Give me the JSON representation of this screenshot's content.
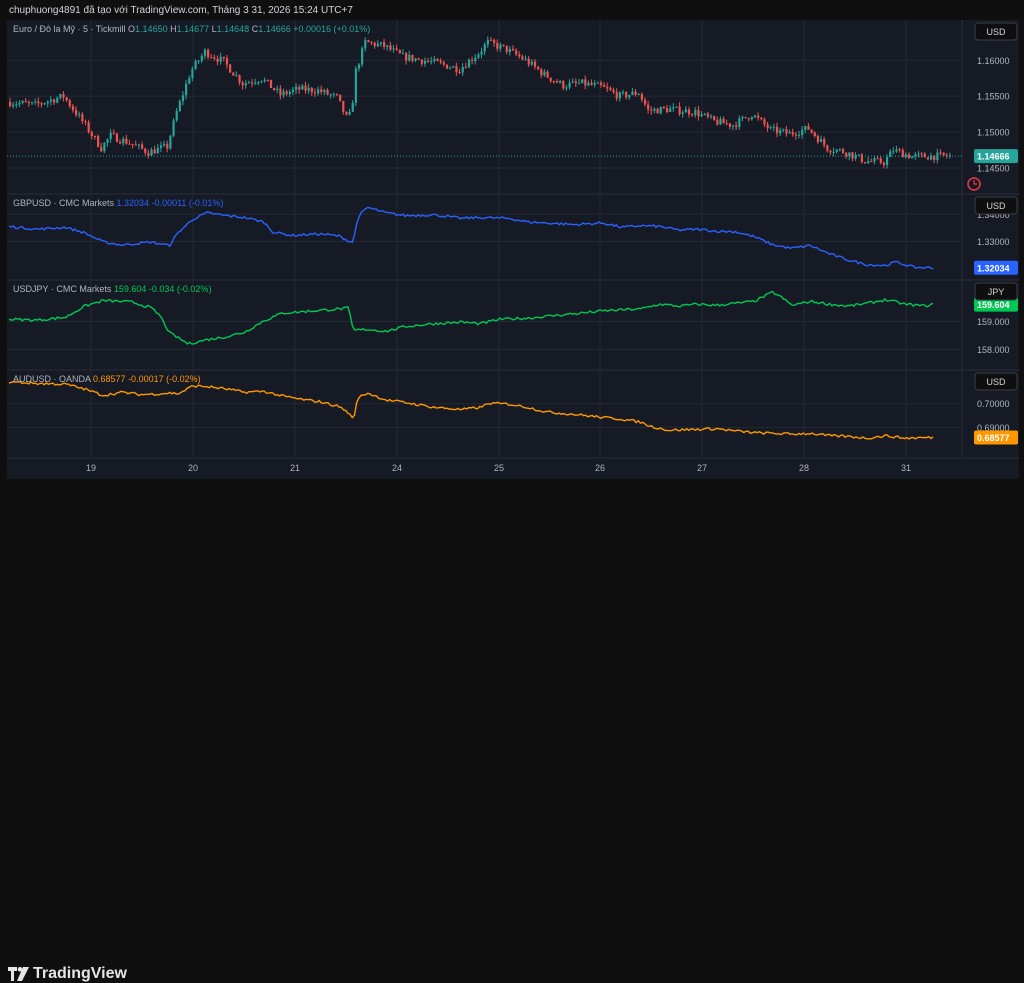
{
  "header": {
    "caption": "chuphuong4891 đã tạo với TradingView.com, Tháng 3 31, 2026 15:24 UTC+7"
  },
  "brand": {
    "name": "TradingView"
  },
  "colors": {
    "bg": "#161a25",
    "grid": "#242833",
    "text": "#b2b5be",
    "up": "#26a69a",
    "down": "#ef5350",
    "gbp": "#2962ff",
    "jpy": "#00c853",
    "aud": "#ff9800"
  },
  "x_axis": {
    "ticks": [
      "19",
      "20",
      "21",
      "24",
      "25",
      "26",
      "27",
      "28",
      "31"
    ]
  },
  "chart_data": [
    {
      "type": "candlestick",
      "symbol": "Euro / Đô la Mỹ · 5 · Tickmill",
      "ohlc": {
        "O_label": "O",
        "O": "1.14650",
        "H_label": "H",
        "H": "1.14677",
        "L_label": "L",
        "L": "1.14648",
        "C_label": "C",
        "C": "1.14666",
        "change": "+0.00016 (+0.01%)"
      },
      "currency": "USD",
      "last": "1.14666",
      "yticks": [
        "1.16000",
        "1.15500",
        "1.15000",
        "1.14500"
      ],
      "ylim": [
        1.1425,
        1.1645
      ],
      "path": [
        [
          0,
          1.1542
        ],
        [
          0.03,
          1.1538
        ],
        [
          0.06,
          1.155
        ],
        [
          0.08,
          1.1515
        ],
        [
          0.1,
          1.1478
        ],
        [
          0.11,
          1.1495
        ],
        [
          0.13,
          1.1485
        ],
        [
          0.15,
          1.1472
        ],
        [
          0.17,
          1.148
        ],
        [
          0.18,
          1.1528
        ],
        [
          0.195,
          1.1585
        ],
        [
          0.21,
          1.1612
        ],
        [
          0.23,
          1.1598
        ],
        [
          0.25,
          1.1568
        ],
        [
          0.27,
          1.1575
        ],
        [
          0.29,
          1.1552
        ],
        [
          0.31,
          1.156
        ],
        [
          0.33,
          1.1558
        ],
        [
          0.35,
          1.1548
        ],
        [
          0.36,
          1.152
        ],
        [
          0.365,
          1.1525
        ],
        [
          0.37,
          1.1585
        ],
        [
          0.38,
          1.1625
        ],
        [
          0.4,
          1.162
        ],
        [
          0.42,
          1.1605
        ],
        [
          0.45,
          1.1598
        ],
        [
          0.48,
          1.1588
        ],
        [
          0.5,
          1.161
        ],
        [
          0.51,
          1.1625
        ],
        [
          0.53,
          1.1615
        ],
        [
          0.55,
          1.16
        ],
        [
          0.57,
          1.158
        ],
        [
          0.59,
          1.1565
        ],
        [
          0.61,
          1.1568
        ],
        [
          0.63,
          1.1563
        ],
        [
          0.65,
          1.155
        ],
        [
          0.67,
          1.1555
        ],
        [
          0.68,
          1.153
        ],
        [
          0.7,
          1.1532
        ],
        [
          0.73,
          1.1528
        ],
        [
          0.75,
          1.1515
        ],
        [
          0.77,
          1.151
        ],
        [
          0.79,
          1.1525
        ],
        [
          0.81,
          1.1503
        ],
        [
          0.83,
          1.1498
        ],
        [
          0.85,
          1.1505
        ],
        [
          0.87,
          1.1478
        ],
        [
          0.89,
          1.1472
        ],
        [
          0.91,
          1.146
        ],
        [
          0.93,
          1.1458
        ],
        [
          0.94,
          1.1475
        ],
        [
          0.96,
          1.1466
        ],
        [
          0.98,
          1.14666
        ]
      ]
    },
    {
      "type": "line",
      "name": "GBPUSD · CMC Markets",
      "value": "1.32034",
      "change": "-0.00011 (-0.01%)",
      "currency": "USD",
      "yticks": [
        "1.34000",
        "1.33000"
      ],
      "ylim": [
        1.3188,
        1.3445
      ],
      "path": [
        [
          0,
          1.3355
        ],
        [
          0.03,
          1.3345
        ],
        [
          0.06,
          1.3352
        ],
        [
          0.08,
          1.3332
        ],
        [
          0.1,
          1.3298
        ],
        [
          0.12,
          1.3287
        ],
        [
          0.15,
          1.3298
        ],
        [
          0.17,
          1.3285
        ],
        [
          0.18,
          1.3335
        ],
        [
          0.195,
          1.3382
        ],
        [
          0.21,
          1.3405
        ],
        [
          0.23,
          1.3395
        ],
        [
          0.25,
          1.3388
        ],
        [
          0.27,
          1.3372
        ],
        [
          0.28,
          1.3335
        ],
        [
          0.3,
          1.3322
        ],
        [
          0.33,
          1.3328
        ],
        [
          0.35,
          1.332
        ],
        [
          0.36,
          1.3302
        ],
        [
          0.365,
          1.3298
        ],
        [
          0.37,
          1.339
        ],
        [
          0.38,
          1.3425
        ],
        [
          0.4,
          1.3405
        ],
        [
          0.42,
          1.3395
        ],
        [
          0.45,
          1.3398
        ],
        [
          0.48,
          1.3385
        ],
        [
          0.5,
          1.3388
        ],
        [
          0.53,
          1.3385
        ],
        [
          0.55,
          1.3372
        ],
        [
          0.58,
          1.3366
        ],
        [
          0.6,
          1.3362
        ],
        [
          0.63,
          1.3368
        ],
        [
          0.65,
          1.3352
        ],
        [
          0.67,
          1.3358
        ],
        [
          0.69,
          1.3355
        ],
        [
          0.71,
          1.3342
        ],
        [
          0.73,
          1.3345
        ],
        [
          0.75,
          1.3338
        ],
        [
          0.77,
          1.3336
        ],
        [
          0.79,
          1.3318
        ],
        [
          0.81,
          1.3288
        ],
        [
          0.83,
          1.3275
        ],
        [
          0.85,
          1.3285
        ],
        [
          0.87,
          1.3255
        ],
        [
          0.89,
          1.3232
        ],
        [
          0.91,
          1.3215
        ],
        [
          0.93,
          1.3212
        ],
        [
          0.94,
          1.3225
        ],
        [
          0.96,
          1.3205
        ],
        [
          0.98,
          1.32034
        ]
      ]
    },
    {
      "type": "line",
      "name": "USDJPY · CMC Markets",
      "value": "159.604",
      "change": "-0.034 (-0.02%)",
      "currency": "JPY",
      "yticks": [
        "159.000",
        "158.000"
      ],
      "ylim": [
        157.55,
        160.2
      ],
      "path": [
        [
          0,
          159.08
        ],
        [
          0.03,
          159.05
        ],
        [
          0.06,
          159.15
        ],
        [
          0.08,
          159.55
        ],
        [
          0.1,
          159.75
        ],
        [
          0.13,
          159.7
        ],
        [
          0.15,
          159.5
        ],
        [
          0.16,
          159.22
        ],
        [
          0.17,
          158.6
        ],
        [
          0.19,
          158.2
        ],
        [
          0.21,
          158.35
        ],
        [
          0.23,
          158.45
        ],
        [
          0.25,
          158.62
        ],
        [
          0.27,
          159.02
        ],
        [
          0.29,
          159.3
        ],
        [
          0.31,
          159.35
        ],
        [
          0.33,
          159.4
        ],
        [
          0.35,
          159.45
        ],
        [
          0.36,
          159.48
        ],
        [
          0.365,
          158.68
        ],
        [
          0.38,
          158.72
        ],
        [
          0.4,
          158.65
        ],
        [
          0.42,
          158.82
        ],
        [
          0.45,
          158.92
        ],
        [
          0.48,
          158.98
        ],
        [
          0.5,
          158.92
        ],
        [
          0.52,
          159.08
        ],
        [
          0.55,
          159.12
        ],
        [
          0.58,
          159.22
        ],
        [
          0.6,
          159.28
        ],
        [
          0.63,
          159.38
        ],
        [
          0.65,
          159.42
        ],
        [
          0.67,
          159.45
        ],
        [
          0.69,
          159.62
        ],
        [
          0.71,
          159.55
        ],
        [
          0.73,
          159.62
        ],
        [
          0.75,
          159.58
        ],
        [
          0.77,
          159.65
        ],
        [
          0.79,
          159.72
        ],
        [
          0.81,
          160.05
        ],
        [
          0.82,
          159.85
        ],
        [
          0.83,
          159.58
        ],
        [
          0.85,
          159.72
        ],
        [
          0.87,
          159.62
        ],
        [
          0.89,
          159.55
        ],
        [
          0.91,
          159.65
        ],
        [
          0.93,
          159.78
        ],
        [
          0.95,
          159.62
        ],
        [
          0.97,
          159.56
        ],
        [
          0.98,
          159.604
        ]
      ]
    },
    {
      "type": "line",
      "name": "AUDUSD · OANDA",
      "value": "0.68577",
      "change": "-0.00017 (-0.02%)",
      "currency": "USD",
      "yticks": [
        "0.70000",
        "0.69000"
      ],
      "ylim": [
        0.6805,
        0.7108
      ],
      "path": [
        [
          0,
          0.7092
        ],
        [
          0.03,
          0.7085
        ],
        [
          0.06,
          0.7082
        ],
        [
          0.08,
          0.7062
        ],
        [
          0.1,
          0.7035
        ],
        [
          0.12,
          0.7048
        ],
        [
          0.14,
          0.7038
        ],
        [
          0.16,
          0.7042
        ],
        [
          0.17,
          0.7045
        ],
        [
          0.18,
          0.7042
        ],
        [
          0.195,
          0.7075
        ],
        [
          0.21,
          0.7072
        ],
        [
          0.23,
          0.7062
        ],
        [
          0.25,
          0.7048
        ],
        [
          0.27,
          0.7052
        ],
        [
          0.29,
          0.7032
        ],
        [
          0.31,
          0.7018
        ],
        [
          0.33,
          0.7008
        ],
        [
          0.35,
          0.6988
        ],
        [
          0.36,
          0.6962
        ],
        [
          0.365,
          0.6932
        ],
        [
          0.37,
          0.7025
        ],
        [
          0.38,
          0.7045
        ],
        [
          0.4,
          0.7015
        ],
        [
          0.42,
          0.7005
        ],
        [
          0.45,
          0.6985
        ],
        [
          0.48,
          0.6975
        ],
        [
          0.5,
          0.6985
        ],
        [
          0.51,
          0.7002
        ],
        [
          0.53,
          0.6998
        ],
        [
          0.55,
          0.6985
        ],
        [
          0.57,
          0.6965
        ],
        [
          0.6,
          0.6955
        ],
        [
          0.63,
          0.6942
        ],
        [
          0.65,
          0.6935
        ],
        [
          0.67,
          0.6922
        ],
        [
          0.68,
          0.6905
        ],
        [
          0.7,
          0.6888
        ],
        [
          0.73,
          0.6892
        ],
        [
          0.75,
          0.6895
        ],
        [
          0.77,
          0.6885
        ],
        [
          0.79,
          0.6878
        ],
        [
          0.81,
          0.6875
        ],
        [
          0.83,
          0.6872
        ],
        [
          0.85,
          0.6875
        ],
        [
          0.87,
          0.6865
        ],
        [
          0.89,
          0.6862
        ],
        [
          0.91,
          0.6855
        ],
        [
          0.93,
          0.6865
        ],
        [
          0.95,
          0.6855
        ],
        [
          0.98,
          0.68577
        ]
      ]
    }
  ]
}
